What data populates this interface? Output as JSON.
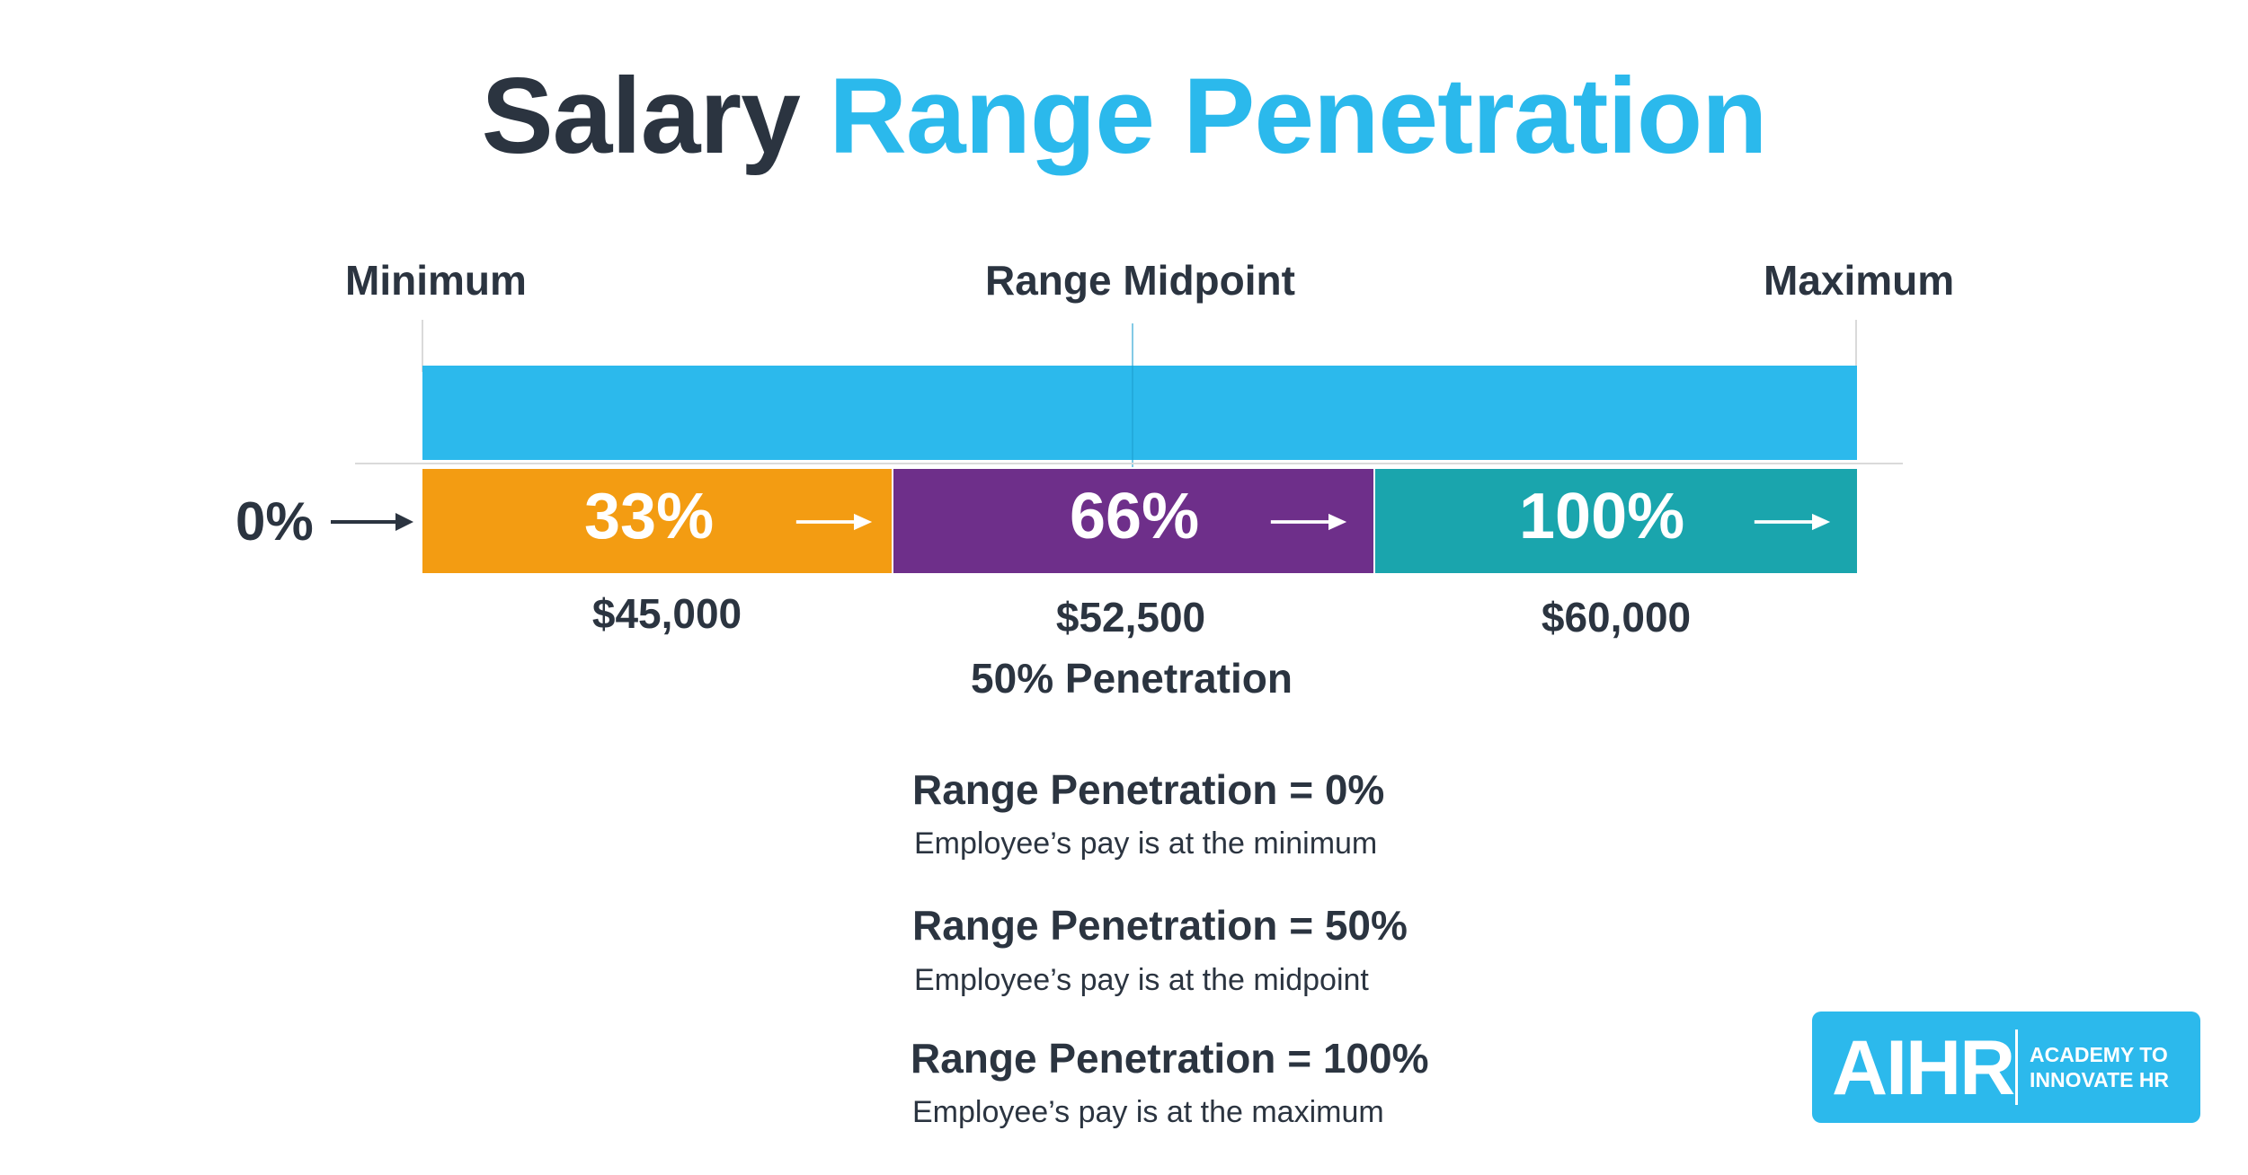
{
  "title": {
    "part1": "Salary",
    "part2": "Range Penetration"
  },
  "labels": {
    "minimum": "Minimum",
    "midpoint": "Range Midpoint",
    "maximum": "Maximum"
  },
  "start_percent": "0%",
  "segments": [
    {
      "percent": "33%",
      "color": "#f39c12"
    },
    {
      "percent": "66%",
      "color": "#6e2f8a"
    },
    {
      "percent": "100%",
      "color": "#1aa5ad"
    }
  ],
  "salaries": {
    "min": "$45,000",
    "mid": "$52,500",
    "max": "$60,000"
  },
  "mid_penetration": "50% Penetration",
  "definitions": [
    {
      "heading": "Range Penetration = 0%",
      "desc": "Employee’s pay is at the minimum"
    },
    {
      "heading": "Range Penetration = 50%",
      "desc": "Employee’s pay is at the midpoint"
    },
    {
      "heading": "Range Penetration = 100%",
      "desc": "Employee’s pay is at the maximum"
    }
  ],
  "logo": {
    "main": "AIHR",
    "sub_line1": "ACADEMY TO",
    "sub_line2": "INNOVATE HR"
  },
  "colors": {
    "accent": "#2cb9ec",
    "dark_text": "#2b3440"
  }
}
